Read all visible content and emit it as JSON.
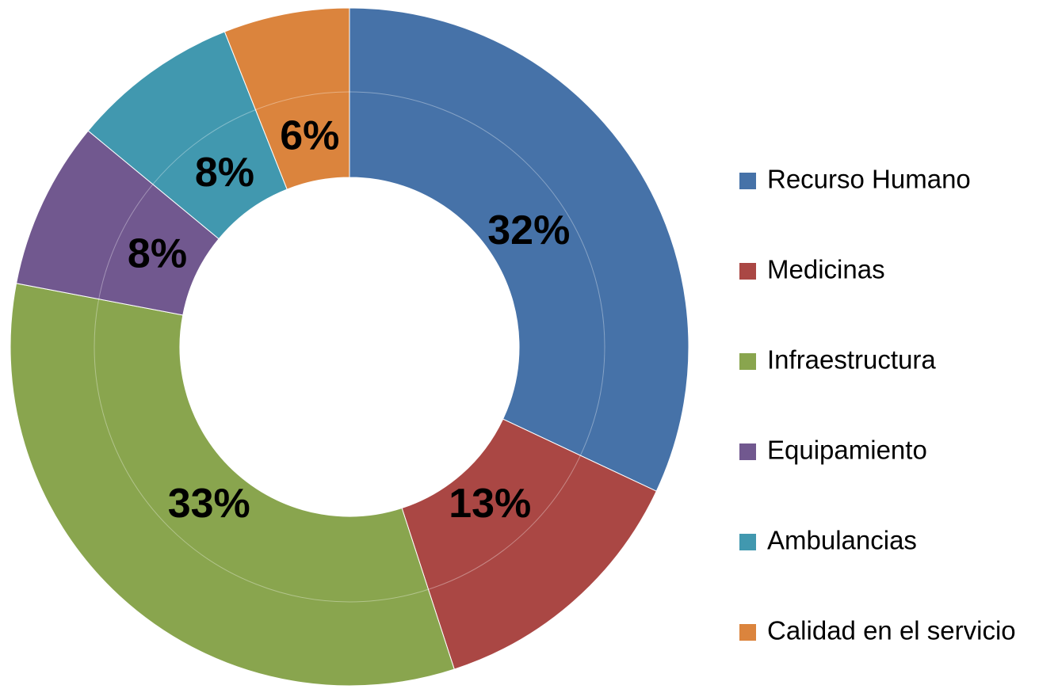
{
  "chart_data": {
    "type": "donut",
    "categories": [
      "Recurso Humano",
      "Medicinas",
      "Infraestructura",
      "Equipamiento",
      "Ambulancias",
      "Calidad en el servicio"
    ],
    "values": [
      32,
      13,
      33,
      8,
      8,
      6
    ],
    "value_labels": [
      "32%",
      "13%",
      "33%",
      "8%",
      "8%",
      "6%"
    ],
    "colors": [
      "#4672a8",
      "#aa4744",
      "#89a54e",
      "#71588f",
      "#4198af",
      "#db843d"
    ],
    "legend": "right"
  }
}
